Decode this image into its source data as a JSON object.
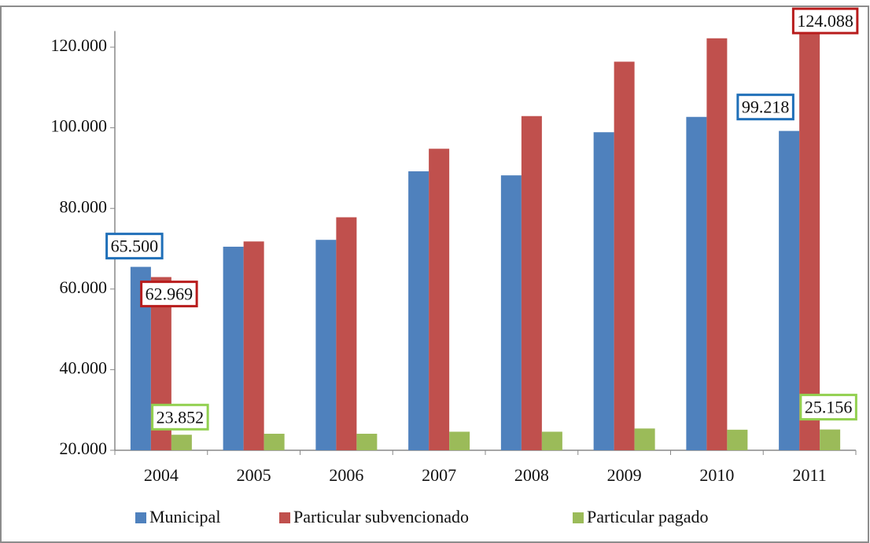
{
  "chart_data": {
    "type": "bar",
    "categories": [
      "2004",
      "2005",
      "2006",
      "2007",
      "2008",
      "2009",
      "2010",
      "2011"
    ],
    "series": [
      {
        "name": "Municipal",
        "color": "#4f81bd",
        "label_border": "#1f6fb8",
        "values": [
          65500,
          70500,
          72200,
          89200,
          88200,
          98900,
          102700,
          99218
        ],
        "value_labels": [
          "65.500",
          null,
          null,
          null,
          null,
          null,
          null,
          "99.218"
        ]
      },
      {
        "name": "Particular subvencionado",
        "color": "#c0504d",
        "label_border": "#b81c1c",
        "values": [
          62969,
          71800,
          77800,
          94800,
          102900,
          116400,
          122200,
          124088
        ],
        "value_labels": [
          "62.969",
          null,
          null,
          null,
          null,
          null,
          null,
          "124.088"
        ]
      },
      {
        "name": "Particular pagado",
        "color": "#9bbb59",
        "label_border": "#92d050",
        "values": [
          23852,
          24100,
          24100,
          24600,
          24600,
          25400,
          25100,
          25156
        ],
        "value_labels": [
          "23.852",
          null,
          null,
          null,
          null,
          null,
          null,
          "25.156"
        ]
      }
    ],
    "ylim": [
      20000,
      124000
    ],
    "yticks": [
      {
        "value": 20000,
        "label": "20.000"
      },
      {
        "value": 40000,
        "label": "40.000"
      },
      {
        "value": 60000,
        "label": "60.000"
      },
      {
        "value": 80000,
        "label": "80.000"
      },
      {
        "value": 100000,
        "label": "100.000"
      },
      {
        "value": 120000,
        "label": "120.000"
      }
    ],
    "grid": false,
    "legend": "bottom"
  }
}
